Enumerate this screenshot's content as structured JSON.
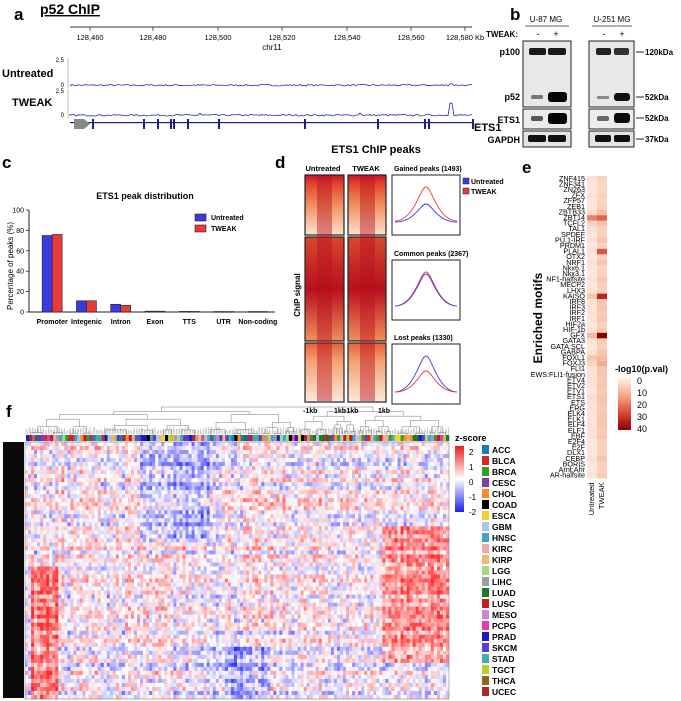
{
  "panels": {
    "a": "a",
    "b": "b",
    "c": "c",
    "d": "d",
    "e": "e",
    "f": "f"
  },
  "a": {
    "title": "p52 ChIP",
    "coords": [
      "128,460",
      "128,480",
      "128,500",
      "128,520",
      "128,540",
      "128,560",
      "128,580 Kb"
    ],
    "chrom": "chr11",
    "tracks": [
      {
        "label": "Untreated",
        "ymax": "2.5",
        "ymin": "0"
      },
      {
        "label": "TWEAK",
        "ymax": "2.5",
        "ymin": "0"
      }
    ],
    "gene": "ETS1"
  },
  "b": {
    "cell_lines": [
      "U-87 MG",
      "U-251 MG"
    ],
    "tweak_label": "TWEAK:",
    "lane_signs": [
      "-",
      "+",
      "-",
      "+"
    ],
    "blots": [
      {
        "label": "p100",
        "marker": "120kDa"
      },
      {
        "label": "p52",
        "marker": "52kDa"
      },
      {
        "label": "ETS1",
        "marker": "52kDa"
      },
      {
        "label": "GAPDH",
        "marker": "37kDa"
      }
    ]
  },
  "chart_data": {
    "type": "bar",
    "title": "ETS1 peak distribution",
    "ylabel": "Percentage of peaks (%)",
    "xlabel": "",
    "ylim": [
      0,
      100
    ],
    "yticks": [
      "0",
      "20",
      "40",
      "60",
      "80",
      "100"
    ],
    "categories": [
      "Promoter",
      "Integenic",
      "Intron",
      "Exon",
      "TTS",
      "UTR",
      "Non-coding"
    ],
    "series": [
      {
        "name": "Untreated",
        "color": "#3a3ae0",
        "values": [
          75,
          11,
          7.5,
          0.8,
          0.6,
          0.5,
          0.5
        ]
      },
      {
        "name": "TWEAK",
        "color": "#e83a3a",
        "values": [
          76,
          11,
          6.5,
          0.8,
          0.6,
          0.5,
          0.5
        ]
      }
    ],
    "legend": "top-right"
  },
  "d": {
    "title": "ETS1 ChIP peaks",
    "col_labels": [
      "Untreated",
      "TWEAK"
    ],
    "ylabel": "ChIP signal",
    "xticks": [
      "-1kb",
      "1kb",
      "-1kb",
      "1kb"
    ],
    "groups": [
      {
        "label": "Gained peaks (1493)"
      },
      {
        "label": "Common peaks (2367)"
      },
      {
        "label": "Lost peaks (1330)"
      }
    ],
    "legend": [
      "Untreated",
      "TWEAK"
    ]
  },
  "e": {
    "ylabel": "Enriched motifs",
    "columns": [
      "Untreated",
      "TWEAK"
    ],
    "legend_title": "-log10(p.val)",
    "legend_ticks": [
      "0",
      "10",
      "20",
      "30",
      "40"
    ],
    "motifs": [
      "ZNF415",
      "ZNF341",
      "ZN263",
      "ZFX",
      "ZFP57",
      "ZEB1",
      "ZBTB33",
      "ZBT14",
      "TCFL2",
      "TAL1",
      "SPDEF",
      "PU.1-IRF",
      "PRDM1",
      "PLAL1",
      "OTX2",
      "NRF1",
      "Nkx6.1",
      "Nkx3.1",
      "NF1-halfsite",
      "MECP2",
      "LHX3",
      "KAISO",
      "IRF8",
      "IRF3",
      "IRF2",
      "IRF1",
      "HIF2a",
      "HIF-1b",
      "GFX",
      "GATA3",
      "GATA:SCL",
      "GABPA",
      "FOXL1",
      "FOXJ3",
      "FLI1",
      "EWS:FLI1-fusion",
      "ETV4",
      "ETV2",
      "ETV1",
      "ETS1",
      "ETS",
      "ERG",
      "ELK4",
      "ELK1",
      "ELF4",
      "ELF1",
      "EBF",
      "E2F4",
      "E2F",
      "DLX1",
      "CEBP",
      "BORIS",
      "Arnt:Ahr",
      "AR-halfsite"
    ],
    "untreated": [
      3,
      2,
      2,
      3,
      2,
      2,
      4,
      18,
      6,
      3,
      2,
      3,
      2,
      3,
      2,
      3,
      2,
      2,
      3,
      2,
      3,
      8,
      3,
      3,
      3,
      3,
      2,
      3,
      10,
      3,
      2,
      3,
      8,
      5,
      3,
      3,
      3,
      3,
      2,
      4,
      3,
      3,
      3,
      3,
      3,
      3,
      3,
      2,
      2,
      2,
      3,
      2,
      2,
      3
    ],
    "tweak": [
      6,
      5,
      5,
      6,
      5,
      6,
      9,
      22,
      9,
      6,
      6,
      8,
      6,
      24,
      6,
      8,
      5,
      6,
      8,
      6,
      6,
      32,
      8,
      8,
      7,
      8,
      6,
      7,
      40,
      7,
      6,
      8,
      10,
      12,
      8,
      8,
      7,
      8,
      7,
      8,
      8,
      7,
      8,
      8,
      8,
      7,
      8,
      6,
      6,
      6,
      8,
      6,
      6,
      7
    ]
  },
  "f": {
    "scale_title": "z-score",
    "scale_ticks": [
      "2",
      "1",
      "0",
      "-1",
      "-2"
    ],
    "cancer_types": [
      {
        "name": "ACC",
        "color": "#1f77b4"
      },
      {
        "name": "BLCA",
        "color": "#d62728"
      },
      {
        "name": "BRCA",
        "color": "#2ca02c"
      },
      {
        "name": "CESC",
        "color": "#7a3fa8"
      },
      {
        "name": "CHOL",
        "color": "#ff8c1a"
      },
      {
        "name": "COAD",
        "color": "#000000"
      },
      {
        "name": "ESCA",
        "color": "#f2d32a"
      },
      {
        "name": "GBM",
        "color": "#a8c8e8"
      },
      {
        "name": "HNSC",
        "color": "#3aa6c8"
      },
      {
        "name": "KIRC",
        "color": "#f4a6a6"
      },
      {
        "name": "KIRP",
        "color": "#f2b870"
      },
      {
        "name": "LGG",
        "color": "#a3d88a"
      },
      {
        "name": "LIHC",
        "color": "#9e9e9e"
      },
      {
        "name": "LUAD",
        "color": "#1a7a2a"
      },
      {
        "name": "LUSC",
        "color": "#c81a1a"
      },
      {
        "name": "MESO",
        "color": "#c48ad8"
      },
      {
        "name": "PCPG",
        "color": "#e83ab8"
      },
      {
        "name": "PRAD",
        "color": "#1a1ac8"
      },
      {
        "name": "SKCM",
        "color": "#5a3ad8"
      },
      {
        "name": "STAD",
        "color": "#3ab0b0"
      },
      {
        "name": "TGCT",
        "color": "#b8d02a"
      },
      {
        "name": "THCA",
        "color": "#8a6a1a"
      },
      {
        "name": "UCEC",
        "color": "#a82a2a"
      }
    ]
  }
}
